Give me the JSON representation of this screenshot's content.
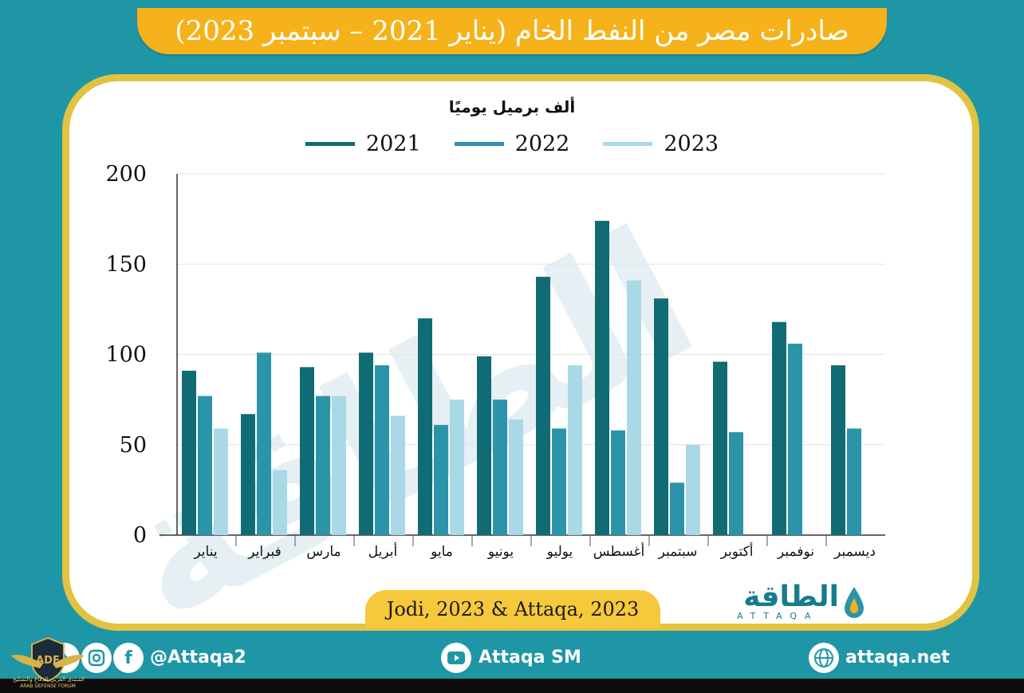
{
  "title": "صادرات مصر من النفط الخام (يناير 2021 – سبتمبر 2023)",
  "colors": {
    "background": "#1f96a6",
    "banner": "#f6b21b",
    "card_border": "#e2c341",
    "series_2021": "#116b74",
    "series_2022": "#2b94a8",
    "series_2023": "#a9d9e6"
  },
  "chart_data": {
    "type": "bar",
    "title": "صادرات مصر من النفط الخام (يناير 2021 – سبتمبر 2023)",
    "ylabel": "ألف برميل يوميًا",
    "xlabel": "",
    "ylim": [
      0,
      200
    ],
    "yticks": [
      0,
      50,
      100,
      150,
      200
    ],
    "grid": true,
    "legend_position": "top-center",
    "categories": [
      "يناير",
      "فبراير",
      "مارس",
      "أبريل",
      "مايو",
      "يونيو",
      "يوليو",
      "أغسطس",
      "سبتمبر",
      "أكتوبر",
      "نوفمبر",
      "ديسمبر"
    ],
    "series": [
      {
        "name": "2021",
        "color": "#116b74",
        "values": [
          91,
          67,
          93,
          101,
          120,
          99,
          143,
          174,
          131,
          96,
          118,
          94
        ]
      },
      {
        "name": "2022",
        "color": "#2b94a8",
        "values": [
          77,
          101,
          77,
          94,
          61,
          75,
          59,
          58,
          29,
          57,
          106,
          59
        ]
      },
      {
        "name": "2023",
        "color": "#a9d9e6",
        "values": [
          59,
          36,
          77,
          66,
          75,
          64,
          94,
          141,
          50,
          null,
          null,
          null
        ]
      }
    ]
  },
  "source": "Jodi, 2023 & Attaqa, 2023",
  "logo": {
    "arabic": "الطاقة",
    "english": "ATTAQA"
  },
  "footer": {
    "social_handle": "@Attaqa2",
    "youtube": "Attaqa SM",
    "website": "attaqa.net"
  },
  "forum_emblem": {
    "initials": "ADF",
    "name_en": "ARAB DEFENSE FORUM",
    "name_ar": "المنتدى العربي للدفاع والتسليح"
  }
}
